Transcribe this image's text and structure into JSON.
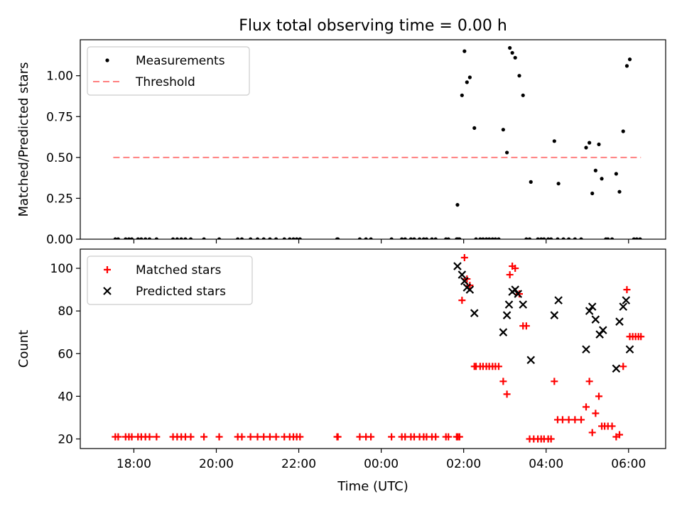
{
  "chart_data": {
    "title": "Flux total observing time = 0.00 h",
    "x_axis": {
      "label": "Time (UTC)",
      "range_hours": [
        -7.3,
        6.9
      ],
      "ticks": [
        {
          "value": -6,
          "label": "18:00"
        },
        {
          "value": -4,
          "label": "20:00"
        },
        {
          "value": -2,
          "label": "22:00"
        },
        {
          "value": 0,
          "label": "00:00"
        },
        {
          "value": 2,
          "label": "02:00"
        },
        {
          "value": 4,
          "label": "04:00"
        },
        {
          "value": 6,
          "label": "06:00"
        }
      ]
    },
    "panels": [
      {
        "type": "scatter",
        "ylabel": "Matched/Predicted stars",
        "ylim": [
          0,
          1.22
        ],
        "yticks": [
          "0.00",
          "0.25",
          "0.50",
          "0.75",
          "1.00"
        ],
        "yticks_values": [
          0,
          0.25,
          0.5,
          0.75,
          1.0
        ],
        "legend_position": "top-left",
        "series": [
          {
            "name": "Measurements",
            "marker": "dot",
            "color": "#000000",
            "points": [
              [
                -6.45,
                0
              ],
              [
                -6.38,
                0
              ],
              [
                -6.2,
                0
              ],
              [
                -6.12,
                0
              ],
              [
                -6.05,
                0
              ],
              [
                -5.9,
                0
              ],
              [
                -5.82,
                0
              ],
              [
                -5.72,
                0
              ],
              [
                -5.62,
                0
              ],
              [
                -5.45,
                0
              ],
              [
                -5.05,
                0
              ],
              [
                -4.95,
                0
              ],
              [
                -4.85,
                0
              ],
              [
                -4.75,
                0
              ],
              [
                -4.62,
                0
              ],
              [
                -4.3,
                0
              ],
              [
                -3.93,
                0
              ],
              [
                -3.48,
                0
              ],
              [
                -3.38,
                0
              ],
              [
                -3.17,
                0
              ],
              [
                -3.0,
                0
              ],
              [
                -2.85,
                0
              ],
              [
                -2.7,
                0
              ],
              [
                -2.55,
                0
              ],
              [
                -2.35,
                0
              ],
              [
                -2.22,
                0
              ],
              [
                -2.13,
                0
              ],
              [
                -2.05,
                0
              ],
              [
                -1.97,
                0
              ],
              [
                -1.07,
                0
              ],
              [
                -1.05,
                0
              ],
              [
                -0.52,
                0
              ],
              [
                -0.37,
                0
              ],
              [
                -0.25,
                0
              ],
              [
                0.25,
                0
              ],
              [
                0.5,
                0
              ],
              [
                0.58,
                0
              ],
              [
                0.72,
                0
              ],
              [
                0.8,
                0
              ],
              [
                0.93,
                0
              ],
              [
                1.03,
                0
              ],
              [
                1.1,
                0
              ],
              [
                1.23,
                0
              ],
              [
                1.32,
                0
              ],
              [
                1.57,
                0
              ],
              [
                1.63,
                0
              ],
              [
                1.83,
                0
              ],
              [
                1.86,
                0
              ],
              [
                1.9,
                0
              ],
              [
                1.85,
                0.21
              ],
              [
                1.96,
                0.88
              ],
              [
                2.02,
                1.15
              ],
              [
                2.08,
                0.96
              ],
              [
                2.15,
                0.99
              ],
              [
                2.26,
                0.68
              ],
              [
                2.3,
                0
              ],
              [
                2.4,
                0
              ],
              [
                2.47,
                0
              ],
              [
                2.55,
                0
              ],
              [
                2.62,
                0
              ],
              [
                2.7,
                0
              ],
              [
                2.77,
                0
              ],
              [
                2.85,
                0
              ],
              [
                2.96,
                0.67
              ],
              [
                3.05,
                0.53
              ],
              [
                3.12,
                1.17
              ],
              [
                3.18,
                1.14
              ],
              [
                3.25,
                1.11
              ],
              [
                3.35,
                1.0
              ],
              [
                3.44,
                0.88
              ],
              [
                3.63,
                0.35
              ],
              [
                3.52,
                0
              ],
              [
                3.6,
                0
              ],
              [
                3.8,
                0
              ],
              [
                3.88,
                0
              ],
              [
                3.95,
                0
              ],
              [
                4.05,
                0
              ],
              [
                4.12,
                0
              ],
              [
                4.28,
                0
              ],
              [
                4.42,
                0
              ],
              [
                4.55,
                0
              ],
              [
                4.7,
                0
              ],
              [
                4.85,
                0
              ],
              [
                4.2,
                0.6
              ],
              [
                4.3,
                0.34
              ],
              [
                4.97,
                0.56
              ],
              [
                5.05,
                0.59
              ],
              [
                5.12,
                0.28
              ],
              [
                5.2,
                0.42
              ],
              [
                5.28,
                0.58
              ],
              [
                5.35,
                0.37
              ],
              [
                5.45,
                0
              ],
              [
                5.5,
                0
              ],
              [
                5.6,
                0
              ],
              [
                5.7,
                0.4
              ],
              [
                5.78,
                0.29
              ],
              [
                5.87,
                0.66
              ],
              [
                5.96,
                1.06
              ],
              [
                6.03,
                1.1
              ],
              [
                6.13,
                0
              ],
              [
                6.2,
                0
              ],
              [
                6.28,
                0
              ]
            ]
          },
          {
            "name": "Threshold",
            "marker": "dashed-line",
            "color": "#ff8080",
            "points": [
              [
                -6.5,
                0.5
              ],
              [
                6.3,
                0.5
              ]
            ]
          }
        ]
      },
      {
        "type": "scatter",
        "ylabel": "Count",
        "ylim": [
          15.5,
          109
        ],
        "yticks": [
          "20",
          "40",
          "60",
          "80",
          "100"
        ],
        "yticks_values": [
          20,
          40,
          60,
          80,
          100
        ],
        "legend_position": "top-left",
        "series": [
          {
            "name": "Matched stars",
            "marker": "plus",
            "color": "#ff0000",
            "points": [
              [
                -6.45,
                21
              ],
              [
                -6.38,
                21
              ],
              [
                -6.2,
                21
              ],
              [
                -6.12,
                21
              ],
              [
                -6.05,
                21
              ],
              [
                -5.9,
                21
              ],
              [
                -5.82,
                21
              ],
              [
                -5.72,
                21
              ],
              [
                -5.62,
                21
              ],
              [
                -5.45,
                21
              ],
              [
                -5.05,
                21
              ],
              [
                -4.95,
                21
              ],
              [
                -4.85,
                21
              ],
              [
                -4.75,
                21
              ],
              [
                -4.62,
                21
              ],
              [
                -4.3,
                21
              ],
              [
                -3.93,
                21
              ],
              [
                -3.48,
                21
              ],
              [
                -3.38,
                21
              ],
              [
                -3.17,
                21
              ],
              [
                -3.0,
                21
              ],
              [
                -2.85,
                21
              ],
              [
                -2.7,
                21
              ],
              [
                -2.55,
                21
              ],
              [
                -2.35,
                21
              ],
              [
                -2.22,
                21
              ],
              [
                -2.13,
                21
              ],
              [
                -2.05,
                21
              ],
              [
                -1.97,
                21
              ],
              [
                -1.07,
                21
              ],
              [
                -1.05,
                21
              ],
              [
                -0.52,
                21
              ],
              [
                -0.37,
                21
              ],
              [
                -0.25,
                21
              ],
              [
                0.25,
                21
              ],
              [
                0.5,
                21
              ],
              [
                0.58,
                21
              ],
              [
                0.72,
                21
              ],
              [
                0.8,
                21
              ],
              [
                0.93,
                21
              ],
              [
                1.03,
                21
              ],
              [
                1.1,
                21
              ],
              [
                1.23,
                21
              ],
              [
                1.32,
                21
              ],
              [
                1.57,
                21
              ],
              [
                1.63,
                21
              ],
              [
                1.83,
                21
              ],
              [
                1.86,
                21
              ],
              [
                1.9,
                21
              ],
              [
                1.96,
                85
              ],
              [
                2.02,
                105
              ],
              [
                2.08,
                95
              ],
              [
                2.15,
                92
              ],
              [
                2.26,
                54
              ],
              [
                2.3,
                54
              ],
              [
                2.4,
                54
              ],
              [
                2.47,
                54
              ],
              [
                2.55,
                54
              ],
              [
                2.62,
                54
              ],
              [
                2.7,
                54
              ],
              [
                2.77,
                54
              ],
              [
                2.85,
                54
              ],
              [
                2.96,
                47
              ],
              [
                3.05,
                41
              ],
              [
                3.12,
                97
              ],
              [
                3.18,
                101
              ],
              [
                3.25,
                100
              ],
              [
                3.35,
                88
              ],
              [
                3.44,
                73
              ],
              [
                3.52,
                73
              ],
              [
                3.6,
                20
              ],
              [
                3.7,
                20
              ],
              [
                3.8,
                20
              ],
              [
                3.88,
                20
              ],
              [
                3.95,
                20
              ],
              [
                4.05,
                20
              ],
              [
                4.12,
                20
              ],
              [
                4.2,
                47
              ],
              [
                4.28,
                29
              ],
              [
                4.4,
                29
              ],
              [
                4.55,
                29
              ],
              [
                4.7,
                29
              ],
              [
                4.85,
                29
              ],
              [
                4.97,
                35
              ],
              [
                5.05,
                47
              ],
              [
                5.12,
                23
              ],
              [
                5.2,
                32
              ],
              [
                5.28,
                40
              ],
              [
                5.35,
                26
              ],
              [
                5.42,
                26
              ],
              [
                5.5,
                26
              ],
              [
                5.6,
                26
              ],
              [
                5.7,
                21
              ],
              [
                5.78,
                22
              ],
              [
                5.87,
                54
              ],
              [
                5.96,
                90
              ],
              [
                6.03,
                68
              ],
              [
                6.1,
                68
              ],
              [
                6.17,
                68
              ],
              [
                6.24,
                68
              ],
              [
                6.3,
                68
              ]
            ]
          },
          {
            "name": "Predicted stars",
            "marker": "x",
            "color": "#000000",
            "points": [
              [
                1.85,
                101
              ],
              [
                1.96,
                97
              ],
              [
                2.02,
                94
              ],
              [
                2.08,
                91
              ],
              [
                2.15,
                90
              ],
              [
                2.26,
                79
              ],
              [
                2.96,
                70
              ],
              [
                3.05,
                78
              ],
              [
                3.1,
                83
              ],
              [
                3.18,
                89
              ],
              [
                3.25,
                90
              ],
              [
                3.32,
                88
              ],
              [
                3.44,
                83
              ],
              [
                3.63,
                57
              ],
              [
                4.2,
                78
              ],
              [
                4.3,
                85
              ],
              [
                4.97,
                62
              ],
              [
                5.05,
                80
              ],
              [
                5.12,
                82
              ],
              [
                5.2,
                76
              ],
              [
                5.3,
                69
              ],
              [
                5.38,
                71
              ],
              [
                5.7,
                53
              ],
              [
                5.78,
                75
              ],
              [
                5.87,
                82
              ],
              [
                5.94,
                85
              ],
              [
                6.03,
                62
              ]
            ]
          }
        ]
      }
    ]
  }
}
